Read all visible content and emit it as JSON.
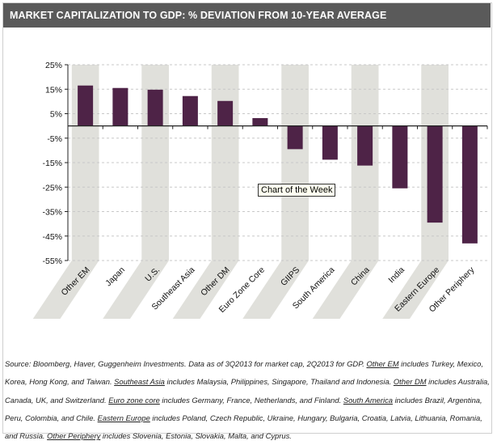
{
  "header": {
    "title": "MARKET CAPITALIZATION TO GDP: % DEVIATION FROM 10-YEAR AVERAGE"
  },
  "chart_data": {
    "type": "bar",
    "title": "MARKET CAPITALIZATION TO GDP: % DEVIATION FROM 10-YEAR AVERAGE",
    "xlabel": "",
    "ylabel": "",
    "ylim": [
      -55,
      25
    ],
    "yticks": [
      25,
      15,
      5,
      -5,
      -15,
      -25,
      -35,
      -45,
      -55
    ],
    "ytick_labels": [
      "25%",
      "15%",
      "5%",
      "-5%",
      "-15%",
      "-25%",
      "-35%",
      "-45%",
      "-55%"
    ],
    "grid": true,
    "categories": [
      "Other EM",
      "Japan",
      "U.S.",
      "Southeast Asia",
      "Other DM",
      "Euro Zone Core",
      "GIIPS",
      "South America",
      "China",
      "India",
      "Eastern Europe",
      "Other Periphery"
    ],
    "values": [
      16.5,
      15.5,
      14.8,
      12.2,
      10.2,
      3.2,
      -9.5,
      -13.8,
      -16.2,
      -25.5,
      -39.5,
      -48
    ],
    "bar_color": "#4e2347",
    "band_color": "#e0e0db"
  },
  "tooltip": "Chart of the Week",
  "source": {
    "segments": [
      {
        "text": "Source: Bloomberg, Haver, Guggenheim Investments. Data as of 3Q2013 for market cap, 2Q2013 for GDP. ",
        "u": false
      },
      {
        "text": "Other EM",
        "u": true
      },
      {
        "text": " includes Turkey, Mexico, Korea, Hong Kong, and Taiwan. ",
        "u": false
      },
      {
        "text": "Southeast Asia",
        "u": true
      },
      {
        "text": " includes Malaysia, Philippines, Singapore, Thailand and Indonesia. ",
        "u": false
      },
      {
        "text": "Other DM",
        "u": true
      },
      {
        "text": " includes Australia, Canada, UK, and Switzerland. ",
        "u": false
      },
      {
        "text": "Euro zone core",
        "u": true
      },
      {
        "text": " includes Germany, France, Netherlands, and Finland. ",
        "u": false
      },
      {
        "text": "South America",
        "u": true
      },
      {
        "text": " includes Brazil, Argentina, Peru, Colombia, and Chile. ",
        "u": false
      },
      {
        "text": "Eastern Europe",
        "u": true
      },
      {
        "text": " includes Poland, Czech Republic, Ukraine, Hungary, Bulgaria, Croatia, Latvia, Lithuania, Romania, and Russia. ",
        "u": false
      },
      {
        "text": "Other Periphery",
        "u": true
      },
      {
        "text": " includes Slovenia, Estonia, Slovakia, Malta, and Cyprus.",
        "u": false
      }
    ]
  }
}
